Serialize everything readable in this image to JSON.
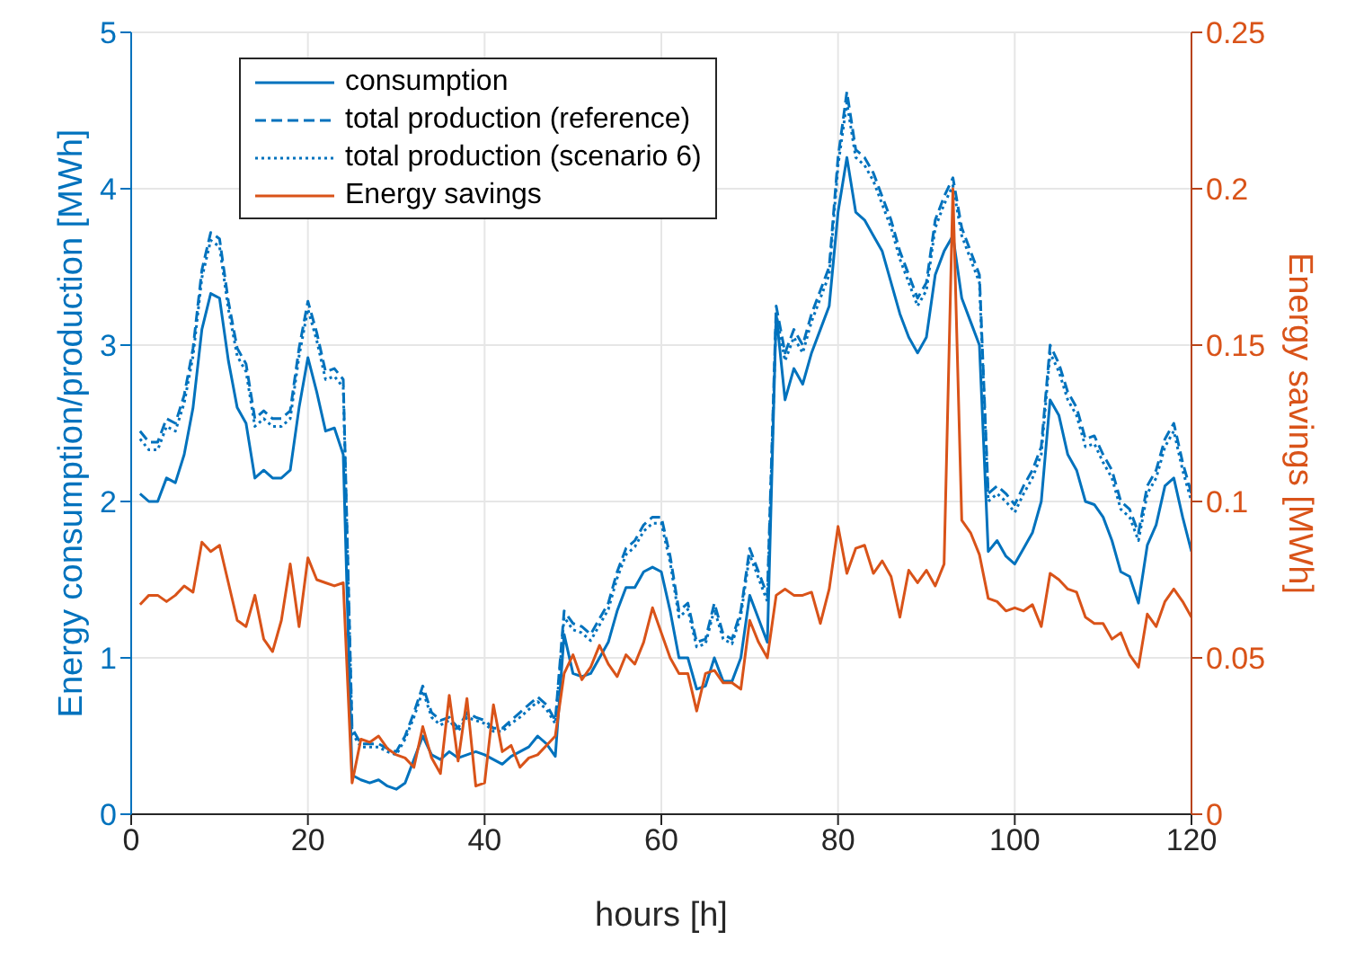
{
  "chart_data": {
    "type": "line",
    "xlabel": "hours [h]",
    "ylabel": "Energy consumption/production [MWh]",
    "y2label": "Energy savings [MWh]",
    "x": [
      1,
      2,
      3,
      4,
      5,
      6,
      7,
      8,
      9,
      10,
      11,
      12,
      13,
      14,
      15,
      16,
      17,
      18,
      19,
      20,
      21,
      22,
      23,
      24,
      25,
      26,
      27,
      28,
      29,
      30,
      31,
      32,
      33,
      34,
      35,
      36,
      37,
      38,
      39,
      40,
      41,
      42,
      43,
      44,
      45,
      46,
      47,
      48,
      49,
      50,
      51,
      52,
      53,
      54,
      55,
      56,
      57,
      58,
      59,
      60,
      61,
      62,
      63,
      64,
      65,
      66,
      67,
      68,
      69,
      70,
      71,
      72,
      73,
      74,
      75,
      76,
      77,
      78,
      79,
      80,
      81,
      82,
      83,
      84,
      85,
      86,
      87,
      88,
      89,
      90,
      91,
      92,
      93,
      94,
      95,
      96,
      97,
      98,
      99,
      100,
      101,
      102,
      103,
      104,
      105,
      106,
      107,
      108,
      109,
      110,
      111,
      112,
      113,
      114,
      115,
      116,
      117,
      118,
      119,
      120
    ],
    "series": [
      {
        "name": "consumption",
        "color": "#0072bd",
        "line_style": "solid",
        "values": [
          2.05,
          2.0,
          2.0,
          2.15,
          2.12,
          2.3,
          2.6,
          3.1,
          3.33,
          3.3,
          2.9,
          2.6,
          2.5,
          2.15,
          2.2,
          2.15,
          2.15,
          2.2,
          2.6,
          2.92,
          2.7,
          2.45,
          2.47,
          2.3,
          0.25,
          0.22,
          0.2,
          0.22,
          0.18,
          0.16,
          0.2,
          0.35,
          0.5,
          0.38,
          0.35,
          0.4,
          0.36,
          0.38,
          0.4,
          0.38,
          0.35,
          0.32,
          0.37,
          0.4,
          0.43,
          0.5,
          0.45,
          0.37,
          1.15,
          0.9,
          0.88,
          0.9,
          1.0,
          1.1,
          1.3,
          1.45,
          1.45,
          1.55,
          1.58,
          1.55,
          1.3,
          1.0,
          1.0,
          0.8,
          0.82,
          1.0,
          0.85,
          0.85,
          1.0,
          1.4,
          1.25,
          1.1,
          3.2,
          2.65,
          2.85,
          2.75,
          2.95,
          3.1,
          3.25,
          3.85,
          4.2,
          3.85,
          3.8,
          3.7,
          3.6,
          3.4,
          3.2,
          3.05,
          2.95,
          3.05,
          3.45,
          3.6,
          3.7,
          3.3,
          3.15,
          3.0,
          1.68,
          1.75,
          1.65,
          1.6,
          1.7,
          1.8,
          2.0,
          2.65,
          2.55,
          2.3,
          2.2,
          2.0,
          1.98,
          1.9,
          1.75,
          1.55,
          1.52,
          1.35,
          1.72,
          1.85,
          2.1,
          2.15,
          1.9,
          1.68
        ]
      },
      {
        "name": "total production (reference)",
        "color": "#0072bd",
        "line_style": "dashed",
        "values": [
          2.45,
          2.38,
          2.38,
          2.53,
          2.5,
          2.68,
          2.98,
          3.48,
          3.72,
          3.68,
          3.28,
          2.98,
          2.88,
          2.53,
          2.58,
          2.53,
          2.53,
          2.58,
          2.98,
          3.28,
          3.08,
          2.83,
          2.85,
          2.78,
          0.55,
          0.45,
          0.45,
          0.45,
          0.42,
          0.4,
          0.5,
          0.65,
          0.82,
          0.65,
          0.6,
          0.62,
          0.55,
          0.65,
          0.62,
          0.6,
          0.55,
          0.55,
          0.6,
          0.65,
          0.7,
          0.75,
          0.7,
          0.6,
          1.3,
          1.22,
          1.2,
          1.15,
          1.25,
          1.35,
          1.55,
          1.7,
          1.75,
          1.85,
          1.9,
          1.9,
          1.65,
          1.3,
          1.35,
          1.1,
          1.12,
          1.35,
          1.15,
          1.12,
          1.3,
          1.7,
          1.55,
          1.4,
          3.25,
          2.95,
          3.1,
          3.0,
          3.2,
          3.35,
          3.5,
          4.2,
          4.62,
          4.25,
          4.2,
          4.1,
          3.95,
          3.8,
          3.6,
          3.45,
          3.3,
          3.4,
          3.8,
          3.95,
          4.07,
          3.75,
          3.6,
          3.45,
          2.05,
          2.1,
          2.05,
          1.98,
          2.1,
          2.2,
          2.35,
          3.0,
          2.88,
          2.7,
          2.6,
          2.4,
          2.42,
          2.3,
          2.2,
          2.0,
          1.95,
          1.8,
          2.1,
          2.2,
          2.4,
          2.5,
          2.25,
          2.05
        ]
      },
      {
        "name": "total production (scenario 6)",
        "color": "#0072bd",
        "line_style": "dotted",
        "values": [
          2.4,
          2.33,
          2.33,
          2.48,
          2.45,
          2.63,
          2.93,
          3.43,
          3.67,
          3.63,
          3.23,
          2.93,
          2.83,
          2.48,
          2.53,
          2.48,
          2.48,
          2.53,
          2.93,
          3.23,
          3.03,
          2.78,
          2.8,
          2.73,
          0.52,
          0.43,
          0.43,
          0.43,
          0.4,
          0.38,
          0.48,
          0.62,
          0.79,
          0.62,
          0.57,
          0.6,
          0.53,
          0.62,
          0.6,
          0.58,
          0.53,
          0.53,
          0.58,
          0.62,
          0.67,
          0.72,
          0.67,
          0.58,
          1.26,
          1.18,
          1.16,
          1.11,
          1.21,
          1.31,
          1.51,
          1.66,
          1.71,
          1.81,
          1.86,
          1.86,
          1.61,
          1.26,
          1.31,
          1.07,
          1.09,
          1.31,
          1.12,
          1.09,
          1.27,
          1.66,
          1.51,
          1.36,
          3.2,
          2.9,
          3.05,
          2.95,
          3.15,
          3.3,
          3.45,
          4.15,
          4.55,
          4.2,
          4.15,
          4.05,
          3.9,
          3.75,
          3.55,
          3.4,
          3.25,
          3.35,
          3.75,
          3.9,
          4.02,
          3.7,
          3.55,
          3.4,
          2.0,
          2.05,
          2.0,
          1.93,
          2.05,
          2.15,
          2.3,
          2.95,
          2.83,
          2.65,
          2.55,
          2.35,
          2.37,
          2.25,
          2.15,
          1.95,
          1.9,
          1.75,
          2.05,
          2.15,
          2.35,
          2.45,
          2.2,
          2.0
        ]
      },
      {
        "name": "Energy savings",
        "color": "#d95319",
        "line_style": "solid",
        "axis": "y2",
        "values": [
          0.067,
          0.07,
          0.07,
          0.068,
          0.07,
          0.073,
          0.071,
          0.087,
          0.084,
          0.086,
          0.074,
          0.062,
          0.06,
          0.07,
          0.056,
          0.052,
          0.062,
          0.08,
          0.06,
          0.082,
          0.075,
          0.074,
          0.073,
          0.074,
          0.01,
          0.024,
          0.023,
          0.025,
          0.021,
          0.019,
          0.018,
          0.015,
          0.028,
          0.018,
          0.013,
          0.038,
          0.017,
          0.037,
          0.009,
          0.01,
          0.035,
          0.02,
          0.022,
          0.015,
          0.018,
          0.019,
          0.022,
          0.025,
          0.045,
          0.051,
          0.043,
          0.047,
          0.054,
          0.048,
          0.044,
          0.051,
          0.048,
          0.055,
          0.066,
          0.058,
          0.05,
          0.045,
          0.045,
          0.033,
          0.045,
          0.046,
          0.042,
          0.042,
          0.04,
          0.062,
          0.055,
          0.05,
          0.07,
          0.072,
          0.07,
          0.07,
          0.071,
          0.061,
          0.072,
          0.092,
          0.077,
          0.085,
          0.086,
          0.077,
          0.081,
          0.076,
          0.063,
          0.078,
          0.074,
          0.078,
          0.073,
          0.08,
          0.2,
          0.094,
          0.09,
          0.083,
          0.069,
          0.068,
          0.065,
          0.066,
          0.065,
          0.067,
          0.06,
          0.077,
          0.075,
          0.072,
          0.071,
          0.063,
          0.061,
          0.061,
          0.056,
          0.058,
          0.051,
          0.047,
          0.064,
          0.06,
          0.068,
          0.072,
          0.068,
          0.063
        ]
      }
    ],
    "xlim": [
      0,
      120
    ],
    "xticks": [
      0,
      20,
      40,
      60,
      80,
      100,
      120
    ],
    "ylim": [
      0,
      5
    ],
    "yticks": [
      0,
      1,
      2,
      3,
      4,
      5
    ],
    "y2lim": [
      0,
      0.25
    ],
    "y2ticks": [
      0,
      0.05,
      0.1,
      0.15,
      0.2,
      0.25
    ],
    "grid": true,
    "legend": "top left"
  }
}
